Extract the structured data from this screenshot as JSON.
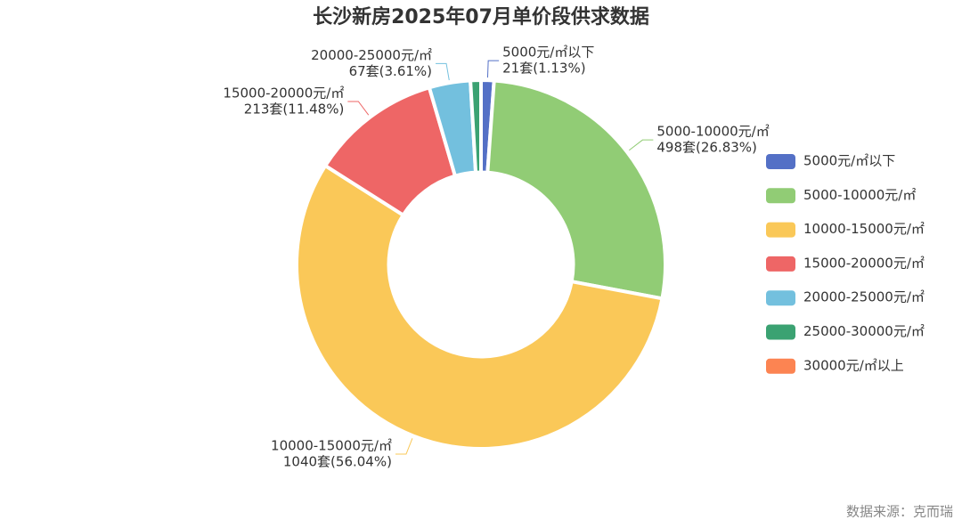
{
  "chart_data": {
    "type": "pie",
    "title": "长沙新房2025年07月单价段供求数据",
    "source": "数据来源：克而瑞",
    "categories": [
      "5000元/㎡以下",
      "5000-10000元/㎡",
      "10000-15000元/㎡",
      "15000-20000元/㎡",
      "20000-25000元/㎡",
      "25000-30000元/㎡",
      "30000元/㎡以上"
    ],
    "values": [
      21,
      498,
      1040,
      213,
      67,
      17,
      0
    ],
    "value_labels": [
      "21套(1.13%)",
      "498套(26.83%)",
      "1040套(56.04%)",
      "213套(11.48%)",
      "67套(3.61%)",
      null,
      null
    ],
    "colors": [
      "#5470c6",
      "#91cc75",
      "#fac858",
      "#ee6666",
      "#73c0de",
      "#3ba272",
      "#fc8452"
    ],
    "inner_radius_ratio": 0.5,
    "legend": "right"
  }
}
